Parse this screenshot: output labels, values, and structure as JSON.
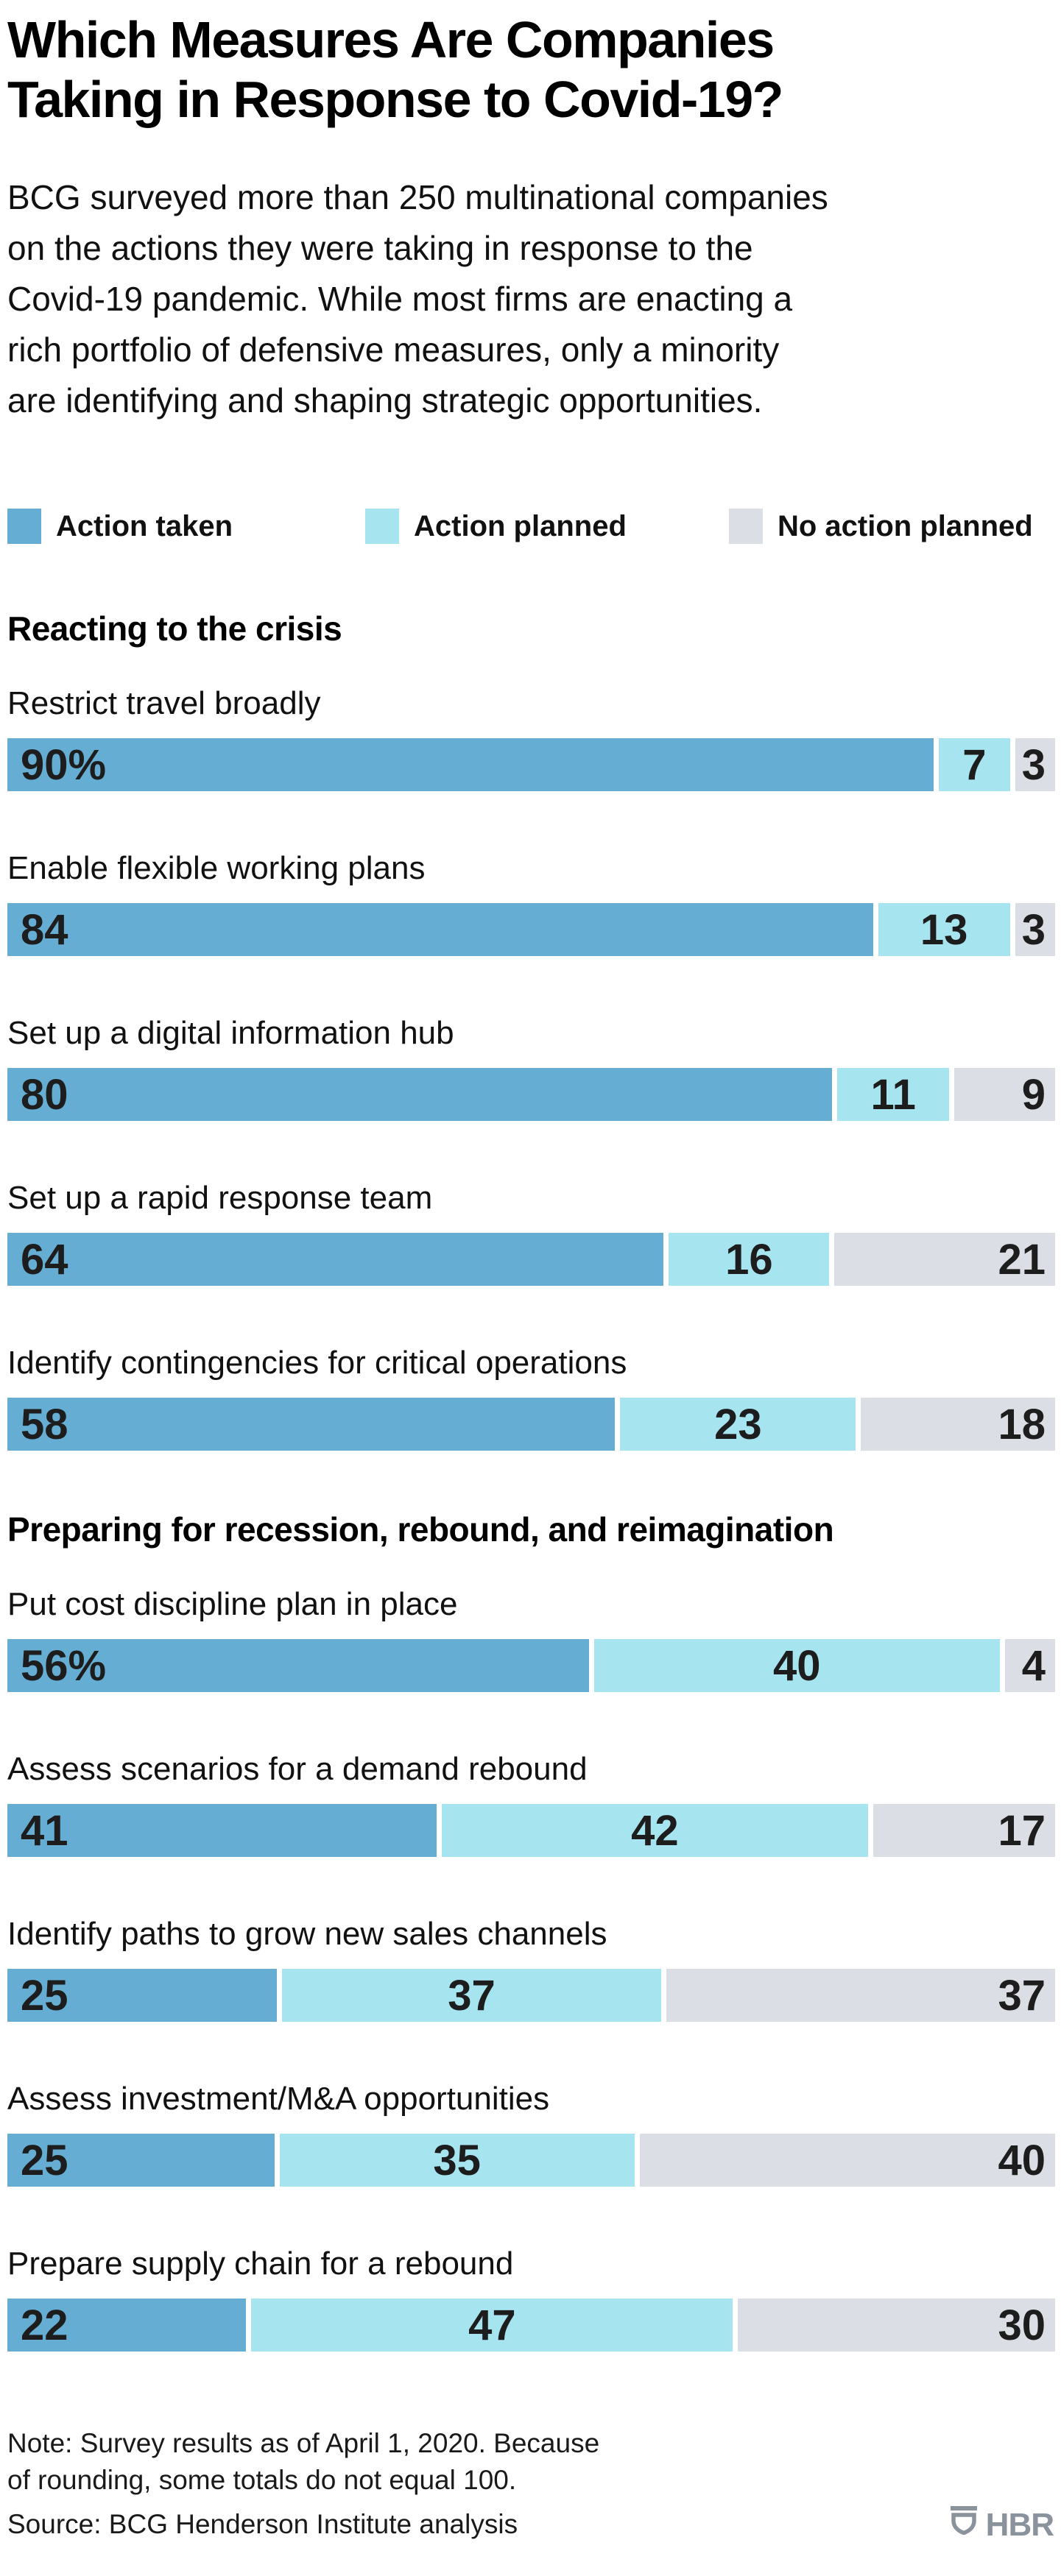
{
  "title_lines": [
    "Which Measures Are Companies",
    "Taking in Response to Covid-19?"
  ],
  "subtitle_lines": [
    "BCG surveyed more than 250 multinational companies",
    "on the actions they were taking in response to the",
    "Covid-19 pandemic. While most firms are enacting a",
    "rich portfolio of defensive measures, only a minority",
    "are identifying and shaping strategic opportunities."
  ],
  "legend": {
    "items": [
      {
        "label": "Action taken",
        "color": "#66ADD4"
      },
      {
        "label": "Action planned",
        "color": "#A6E4F0"
      },
      {
        "label": "No action planned",
        "color": "#DBDFE5"
      }
    ]
  },
  "chart_data": {
    "type": "bar",
    "stacked": true,
    "orientation": "horizontal",
    "unit": "percent",
    "xlim": [
      0,
      100
    ],
    "grid": false,
    "legend_position": "top",
    "series_names": [
      "Action taken",
      "Action planned",
      "No action planned"
    ],
    "sections": [
      {
        "header": "Reacting to the crisis",
        "rows": [
          {
            "label": "Restrict travel broadly",
            "values": [
              90,
              7,
              3
            ],
            "value_labels": [
              "90%",
              "7",
              "3"
            ]
          },
          {
            "label": "Enable flexible working plans",
            "values": [
              84,
              13,
              3
            ],
            "value_labels": [
              "84",
              "13",
              "3"
            ]
          },
          {
            "label": "Set up a digital information hub",
            "values": [
              80,
              11,
              9
            ],
            "value_labels": [
              "80",
              "11",
              "9"
            ]
          },
          {
            "label": "Set up a rapid response team",
            "values": [
              64,
              16,
              21
            ],
            "value_labels": [
              "64",
              "16",
              "21"
            ]
          },
          {
            "label": "Identify contingencies for critical operations",
            "values": [
              58,
              23,
              18
            ],
            "value_labels": [
              "58",
              "23",
              "18"
            ]
          }
        ]
      },
      {
        "header": "Preparing for recession, rebound, and reimagination",
        "rows": [
          {
            "label": "Put cost discipline plan in place",
            "values": [
              56,
              40,
              4
            ],
            "value_labels": [
              "56%",
              "40",
              "4"
            ]
          },
          {
            "label": "Assess scenarios for a demand rebound",
            "values": [
              41,
              42,
              17
            ],
            "value_labels": [
              "41",
              "42",
              "17"
            ]
          },
          {
            "label": "Identify paths to grow new sales channels",
            "values": [
              25,
              37,
              37
            ],
            "value_labels": [
              "25",
              "37",
              "37"
            ]
          },
          {
            "label": "Assess investment/M&A opportunities",
            "values": [
              25,
              35,
              40
            ],
            "value_labels": [
              "25",
              "35",
              "40"
            ]
          },
          {
            "label": "Prepare supply chain for a rebound",
            "values": [
              22,
              47,
              30
            ],
            "value_labels": [
              "22",
              "47",
              "30"
            ]
          }
        ]
      }
    ]
  },
  "footer": {
    "note_lines": [
      "Note: Survey results as of April 1, 2020. Because",
      "of rounding, some totals do not equal 100."
    ],
    "source": "Source: BCG Henderson Institute analysis",
    "logo_text": "HBR",
    "logo_color": "#8a939c"
  }
}
